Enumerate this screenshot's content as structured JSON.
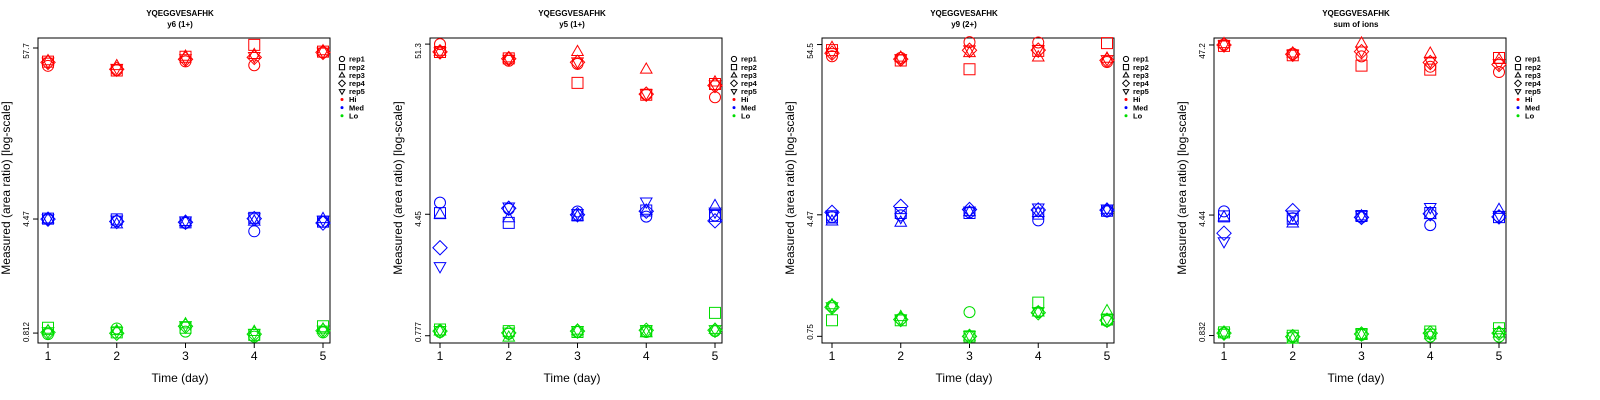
{
  "panels": [
    {
      "title": "YQEGGVESAFHK",
      "subtitle": "y6 (1+)",
      "xlabel": "Time (day)",
      "ylabel": "Measured (area ratio) [log-scale]",
      "yticks": [
        "0.812",
        "4.47",
        "57.7"
      ]
    },
    {
      "title": "YQEGGVESAFHK",
      "subtitle": "y5 (1+)",
      "xlabel": "Time (day)",
      "ylabel": "Measured (area ratio) [log-scale]",
      "yticks": [
        "0.777",
        "4.45",
        "51.3"
      ]
    },
    {
      "title": "YQEGGVESAFHK",
      "subtitle": "y9 (2+)",
      "xlabel": "Time (day)",
      "ylabel": "Measured (area ratio) [log-scale]",
      "yticks": [
        "0.75",
        "4.47",
        "54.5"
      ]
    },
    {
      "title": "YQEGGVESAFHK",
      "subtitle": "sum of ions",
      "xlabel": "Time (day)",
      "ylabel": "Measured (area ratio) [log-scale]",
      "yticks": [
        "0.832",
        "4.44",
        "47.2"
      ]
    }
  ],
  "legend": {
    "shapes": [
      {
        "label": "rep1",
        "symbol": "circle"
      },
      {
        "label": "rep2",
        "symbol": "square"
      },
      {
        "label": "rep3",
        "symbol": "triangle-up"
      },
      {
        "label": "rep4",
        "symbol": "diamond"
      },
      {
        "label": "rep5",
        "symbol": "triangle-down"
      }
    ],
    "levels": [
      {
        "label": "Hi",
        "color": "#ff0000"
      },
      {
        "label": "Med",
        "color": "#0000ff"
      },
      {
        "label": "Lo",
        "color": "#00dd00"
      }
    ]
  },
  "chart_data": [
    {
      "type": "scatter",
      "title": "YQEGGVESAFHK",
      "subtitle": "y6 (1+)",
      "xlabel": "Time (day)",
      "ylabel": "Measured (area ratio) [log-scale]",
      "yscale": "log",
      "x": [
        1,
        2,
        3,
        4,
        5
      ],
      "ylim": [
        0.7,
        67
      ],
      "series": [
        {
          "name": "rep1 Hi",
          "level": "Hi",
          "rep": "rep1",
          "values": [
            44.2,
            41.4,
            47.2,
            44.6,
            53.9
          ]
        },
        {
          "name": "rep2 Hi",
          "level": "Hi",
          "rep": "rep2",
          "values": [
            47.1,
            41.2,
            50.6,
            60.4,
            54.6
          ]
        },
        {
          "name": "rep3 Hi",
          "level": "Hi",
          "rep": "rep3",
          "values": [
            47.6,
            44.2,
            50.9,
            52.2,
            55.2
          ]
        },
        {
          "name": "rep4 Hi",
          "level": "Hi",
          "rep": "rep4",
          "values": [
            46.5,
            42.0,
            48.8,
            50.1,
            54.0
          ]
        },
        {
          "name": "rep5 Hi",
          "level": "Hi",
          "rep": "rep5",
          "values": [
            46.8,
            42.6,
            49.2,
            50.9,
            54.4
          ]
        },
        {
          "name": "rep1 Med",
          "level": "Med",
          "rep": "rep1",
          "values": [
            4.48,
            4.33,
            4.21,
            3.72,
            4.29
          ]
        },
        {
          "name": "rep2 Med",
          "level": "Med",
          "rep": "rep2",
          "values": [
            4.5,
            4.45,
            4.25,
            4.55,
            4.3
          ]
        },
        {
          "name": "rep3 Med",
          "level": "Med",
          "rep": "rep3",
          "values": [
            4.47,
            4.15,
            4.3,
            4.32,
            4.49
          ]
        },
        {
          "name": "rep4 Med",
          "level": "Med",
          "rep": "rep4",
          "values": [
            4.46,
            4.31,
            4.26,
            4.5,
            4.21
          ]
        },
        {
          "name": "rep5 Med",
          "level": "Med",
          "rep": "rep5",
          "values": [
            4.49,
            4.41,
            4.34,
            4.57,
            4.4
          ]
        },
        {
          "name": "rep1 Lo",
          "level": "Lo",
          "rep": "rep1",
          "values": [
            0.8,
            0.87,
            0.83,
            0.77,
            0.82
          ]
        },
        {
          "name": "rep2 Lo",
          "level": "Lo",
          "rep": "rep2",
          "values": [
            0.88,
            0.82,
            0.88,
            0.79,
            0.9
          ]
        },
        {
          "name": "rep3 Lo",
          "level": "Lo",
          "rep": "rep3",
          "values": [
            0.84,
            0.84,
            0.93,
            0.83,
            0.86
          ]
        },
        {
          "name": "rep4 Lo",
          "level": "Lo",
          "rep": "rep4",
          "values": [
            0.82,
            0.81,
            0.9,
            0.8,
            0.84
          ]
        },
        {
          "name": "rep5 Lo",
          "level": "Lo",
          "rep": "rep5",
          "values": [
            0.83,
            0.83,
            0.91,
            0.81,
            0.85
          ]
        }
      ]
    },
    {
      "type": "scatter",
      "title": "YQEGGVESAFHK",
      "subtitle": "y5 (1+)",
      "xlabel": "Time (day)",
      "ylabel": "Measured (area ratio) [log-scale]",
      "yscale": "log",
      "x": [
        1,
        2,
        3,
        4,
        5
      ],
      "ylim": [
        0.7,
        56
      ],
      "series": [
        {
          "name": "rep1 Hi",
          "level": "Hi",
          "rep": "rep1",
          "values": [
            51.3,
            40.4,
            38.6,
            24.8,
            23.9
          ]
        },
        {
          "name": "rep2 Hi",
          "level": "Hi",
          "rep": "rep2",
          "values": [
            45.8,
            41.8,
            29.4,
            24.8,
            28.9
          ]
        },
        {
          "name": "rep3 Hi",
          "level": "Hi",
          "rep": "rep3",
          "values": [
            46.2,
            42.0,
            46.0,
            35.7,
            29.7
          ]
        },
        {
          "name": "rep4 Hi",
          "level": "Hi",
          "rep": "rep4",
          "values": [
            45.9,
            41.6,
            39.5,
            25.0,
            28.3
          ]
        },
        {
          "name": "rep5 Hi",
          "level": "Hi",
          "rep": "rep5",
          "values": [
            46.0,
            41.3,
            39.8,
            25.2,
            28.6
          ]
        },
        {
          "name": "rep1 Med",
          "level": "Med",
          "rep": "rep1",
          "values": [
            5.26,
            4.8,
            4.63,
            4.3,
            4.37
          ]
        },
        {
          "name": "rep2 Med",
          "level": "Med",
          "rep": "rep2",
          "values": [
            4.52,
            3.93,
            4.38,
            4.7,
            4.35
          ]
        },
        {
          "name": "rep3 Med",
          "level": "Med",
          "rep": "rep3",
          "values": [
            4.45,
            4.22,
            4.33,
            4.7,
            5.03
          ]
        },
        {
          "name": "rep4 Med",
          "level": "Med",
          "rep": "rep4",
          "values": [
            2.75,
            4.85,
            4.42,
            4.65,
            4.05
          ]
        },
        {
          "name": "rep5 Med",
          "level": "Med",
          "rep": "rep5",
          "values": [
            2.1,
            4.95,
            4.5,
            5.32,
            4.6
          ]
        },
        {
          "name": "rep1 Lo",
          "level": "Lo",
          "rep": "rep1",
          "values": [
            0.82,
            0.8,
            0.82,
            0.82,
            0.83
          ]
        },
        {
          "name": "rep2 Lo",
          "level": "Lo",
          "rep": "rep2",
          "values": [
            0.85,
            0.83,
            0.82,
            0.83,
            1.08
          ]
        },
        {
          "name": "rep3 Lo",
          "level": "Lo",
          "rep": "rep3",
          "values": [
            0.83,
            0.76,
            0.84,
            0.81,
            0.85
          ]
        },
        {
          "name": "rep4 Lo",
          "level": "Lo",
          "rep": "rep4",
          "values": [
            0.83,
            0.81,
            0.83,
            0.84,
            0.84
          ]
        },
        {
          "name": "rep5 Lo",
          "level": "Lo",
          "rep": "rep5",
          "values": [
            0.84,
            0.82,
            0.84,
            0.85,
            0.85
          ]
        }
      ]
    },
    {
      "type": "scatter",
      "title": "YQEGGVESAFHK",
      "subtitle": "y9 (2+)",
      "xlabel": "Time (day)",
      "ylabel": "Measured (area ratio) [log-scale]",
      "yscale": "log",
      "x": [
        1,
        2,
        3,
        4,
        5
      ],
      "ylim": [
        0.68,
        60
      ],
      "series": [
        {
          "name": "rep1 Hi",
          "level": "Hi",
          "rep": "rep1",
          "values": [
            45.9,
            44.8,
            56.5,
            56.2,
            42.2
          ]
        },
        {
          "name": "rep2 Hi",
          "level": "Hi",
          "rep": "rep2",
          "values": [
            50.2,
            43.1,
            37.9,
            49.7,
            55.6
          ]
        },
        {
          "name": "rep3 Hi",
          "level": "Hi",
          "rep": "rep3",
          "values": [
            52.1,
            45.2,
            48.3,
            45.3,
            44.5
          ]
        },
        {
          "name": "rep4 Hi",
          "level": "Hi",
          "rep": "rep4",
          "values": [
            48.0,
            44.0,
            50.1,
            50.2,
            43.2
          ]
        },
        {
          "name": "rep5 Hi",
          "level": "Hi",
          "rep": "rep5",
          "values": [
            48.5,
            44.4,
            50.5,
            50.8,
            43.8
          ]
        },
        {
          "name": "rep1 Med",
          "level": "Med",
          "rep": "rep1",
          "values": [
            4.32,
            4.43,
            4.64,
            4.12,
            4.7
          ]
        },
        {
          "name": "rep2 Med",
          "level": "Med",
          "rep": "rep2",
          "values": [
            4.3,
            4.59,
            4.59,
            4.55,
            4.74
          ]
        },
        {
          "name": "rep3 Med",
          "level": "Med",
          "rep": "rep3",
          "values": [
            4.07,
            4.0,
            4.67,
            4.61,
            4.84
          ]
        },
        {
          "name": "rep4 Med",
          "level": "Med",
          "rep": "rep4",
          "values": [
            4.63,
            5.06,
            4.83,
            4.8,
            4.79
          ]
        },
        {
          "name": "rep5 Med",
          "level": "Med",
          "rep": "rep5",
          "values": [
            4.48,
            4.3,
            4.73,
            4.95,
            4.88
          ]
        },
        {
          "name": "rep1 Lo",
          "level": "Lo",
          "rep": "rep1",
          "values": [
            1.17,
            0.97,
            1.07,
            1.07,
            0.94
          ]
        },
        {
          "name": "rep2 Lo",
          "level": "Lo",
          "rep": "rep2",
          "values": [
            0.95,
            0.95,
            0.75,
            1.23,
            0.96
          ]
        },
        {
          "name": "rep3 Lo",
          "level": "Lo",
          "rep": "rep3",
          "values": [
            1.19,
            1.0,
            0.75,
            1.07,
            1.09
          ]
        },
        {
          "name": "rep4 Lo",
          "level": "Lo",
          "rep": "rep4",
          "values": [
            1.15,
            0.96,
            0.75,
            1.06,
            0.95
          ]
        },
        {
          "name": "rep5 Lo",
          "level": "Lo",
          "rep": "rep5",
          "values": [
            1.16,
            0.97,
            0.76,
            1.08,
            0.97
          ]
        }
      ]
    },
    {
      "type": "scatter",
      "title": "YQEGGVESAFHK",
      "subtitle": "sum of ions",
      "xlabel": "Time (day)",
      "ylabel": "Measured (area ratio) [log-scale]",
      "yscale": "log",
      "x": [
        1,
        2,
        3,
        4,
        5
      ],
      "ylim": [
        0.75,
        52
      ],
      "series": [
        {
          "name": "rep1 Hi",
          "level": "Hi",
          "rep": "rep1",
          "values": [
            47.5,
            41.8,
            40.3,
            34.9,
            32.4
          ]
        },
        {
          "name": "rep2 Hi",
          "level": "Hi",
          "rep": "rep2",
          "values": [
            46.6,
            40.9,
            35.4,
            33.5,
            39.4
          ]
        },
        {
          "name": "rep3 Hi",
          "level": "Hi",
          "rep": "rep3",
          "values": [
            48.0,
            42.1,
            48.4,
            42.0,
            38.6
          ]
        },
        {
          "name": "rep4 Hi",
          "level": "Hi",
          "rep": "rep4",
          "values": [
            47.2,
            41.5,
            43.0,
            37.0,
            36.0
          ]
        },
        {
          "name": "rep5 Hi",
          "level": "Hi",
          "rep": "rep5",
          "values": [
            47.3,
            41.6,
            43.5,
            37.4,
            36.5
          ]
        },
        {
          "name": "rep1 Med",
          "level": "Med",
          "rep": "rep1",
          "values": [
            4.67,
            4.25,
            4.3,
            3.86,
            4.35
          ]
        },
        {
          "name": "rep2 Med",
          "level": "Med",
          "rep": "rep2",
          "values": [
            4.36,
            4.22,
            4.38,
            4.57,
            4.31
          ]
        },
        {
          "name": "rep3 Med",
          "level": "Med",
          "rep": "rep3",
          "values": [
            4.32,
            3.97,
            4.38,
            4.46,
            4.79
          ]
        },
        {
          "name": "rep4 Med",
          "level": "Med",
          "rep": "rep4",
          "values": [
            3.45,
            4.72,
            4.3,
            4.52,
            4.33
          ]
        },
        {
          "name": "rep5 Med",
          "level": "Med",
          "rep": "rep5",
          "values": [
            3.07,
            4.45,
            4.43,
            4.94,
            4.43
          ]
        },
        {
          "name": "rep1 Lo",
          "level": "Lo",
          "rep": "rep1",
          "values": [
            0.86,
            0.82,
            0.84,
            0.82,
            0.82
          ]
        },
        {
          "name": "rep2 Lo",
          "level": "Lo",
          "rep": "rep2",
          "values": [
            0.87,
            0.83,
            0.85,
            0.88,
            0.92
          ]
        },
        {
          "name": "rep3 Lo",
          "level": "Lo",
          "rep": "rep3",
          "values": [
            0.87,
            0.79,
            0.84,
            0.84,
            0.86
          ]
        },
        {
          "name": "rep4 Lo",
          "level": "Lo",
          "rep": "rep4",
          "values": [
            0.86,
            0.82,
            0.85,
            0.86,
            0.86
          ]
        },
        {
          "name": "rep5 Lo",
          "level": "Lo",
          "rep": "rep5",
          "values": [
            0.86,
            0.82,
            0.86,
            0.86,
            0.87
          ]
        }
      ]
    }
  ]
}
